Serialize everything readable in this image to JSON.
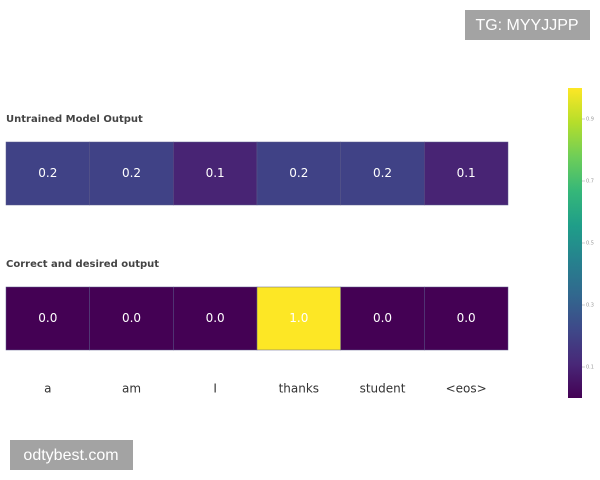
{
  "chart_data": {
    "type": "heatmap",
    "categories": [
      "a",
      "am",
      "I",
      "thanks",
      "student",
      "<eos>"
    ],
    "rows": [
      {
        "name": "Untrained Model Output",
        "values": [
          0.2,
          0.2,
          0.1,
          0.2,
          0.2,
          0.1
        ],
        "value_labels": [
          "0.2",
          "0.2",
          "0.1",
          "0.2",
          "0.2",
          "0.1"
        ]
      },
      {
        "name": "Correct and desired output",
        "values": [
          0.0,
          0.0,
          0.0,
          1.0,
          0.0,
          0.0
        ],
        "value_labels": [
          "0.0",
          "0.0",
          "0.0",
          "1.0",
          "0.0",
          "0.0"
        ]
      }
    ],
    "colorscale": [
      "#440154",
      "#482878",
      "#3e4989",
      "#31688e",
      "#26828e",
      "#1f9e89",
      "#35b779",
      "#6ece58",
      "#b5de2b",
      "#fde725"
    ],
    "colorbar": {
      "lim": [
        0,
        1
      ],
      "ticks": [
        0.1,
        0.3,
        0.5,
        0.7,
        0.9
      ]
    }
  },
  "watermarks": [
    "TG: MYYJJPP",
    "odtybest.com"
  ]
}
